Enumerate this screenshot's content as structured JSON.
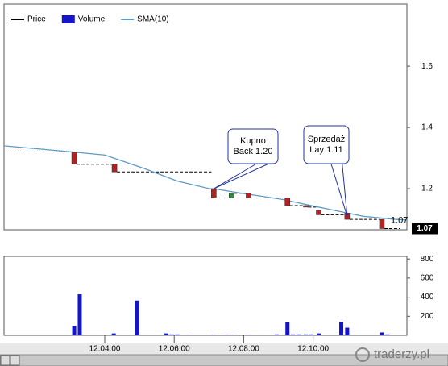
{
  "chart_data": [
    {
      "type": "candlestick",
      "xlim": [
        1.1,
        12.7
      ],
      "ylim": [
        1.066,
        1.803
      ],
      "yticks": [
        1.2,
        1.4,
        1.6
      ],
      "legend": "top-left",
      "candles": {
        "name": "Price",
        "color": "#000000",
        "up_color": "#2e8b3a",
        "down_color": "#b22222",
        "x": [
          3.12,
          4.28,
          7.14,
          7.65,
          8.14,
          9.26,
          9.79,
          10.16,
          10.98,
          11.98
        ],
        "open": [
          1.32,
          1.28,
          1.2,
          1.17,
          1.185,
          1.17,
          1.145,
          1.13,
          1.12,
          1.1
        ],
        "close": [
          1.28,
          1.255,
          1.17,
          1.185,
          1.17,
          1.145,
          1.14,
          1.115,
          1.1,
          1.07
        ]
      },
      "sma": {
        "name": "SMA(10)",
        "color": "#5b9bc4",
        "x": [
          1.1,
          3.07,
          4.0,
          5.16,
          6.09,
          7.02,
          7.14,
          7.95,
          9.12,
          10.28,
          11.44,
          12.37,
          12.7
        ],
        "values": [
          1.34,
          1.32,
          1.31,
          1.265,
          1.225,
          1.2,
          1.2,
          1.185,
          1.165,
          1.137,
          1.11,
          1.1,
          1.098
        ]
      },
      "last_value": 1.07,
      "annotations": [
        {
          "lines": [
            "Kupno",
            "Back 1.20"
          ],
          "x": 7.14,
          "y": 1.2
        },
        {
          "lines": [
            "Sprzedaż",
            "Lay 1.11"
          ],
          "x": 10.98,
          "y": 1.11
        }
      ]
    },
    {
      "type": "bar",
      "xlim": [
        1.1,
        12.7
      ],
      "ylim": [
        0,
        827
      ],
      "yticks": [
        200,
        400,
        600,
        800
      ],
      "xticks": [
        {
          "value": 4,
          "label": "12:04:00"
        },
        {
          "value": 6,
          "label": "12:06:00"
        },
        {
          "value": 8,
          "label": "12:08:00"
        },
        {
          "value": 10,
          "label": "12:10:00"
        }
      ],
      "series": [
        {
          "name": "Volume",
          "color": "#1515c8",
          "x": [
            3.12,
            3.28,
            4.26,
            4.93,
            5.77,
            5.93,
            6.09,
            6.44,
            7.14,
            7.49,
            7.65,
            8.14,
            8.95,
            9.26,
            9.42,
            9.58,
            9.79,
            9.95,
            10.16,
            10.81,
            10.98,
            11.98,
            12.14
          ],
          "values": [
            100,
            430,
            20,
            365,
            20,
            10,
            10,
            5,
            5,
            5,
            5,
            5,
            10,
            135,
            10,
            10,
            10,
            10,
            20,
            140,
            80,
            30,
            10
          ]
        }
      ],
      "watermark": "traderzy.pl"
    }
  ]
}
